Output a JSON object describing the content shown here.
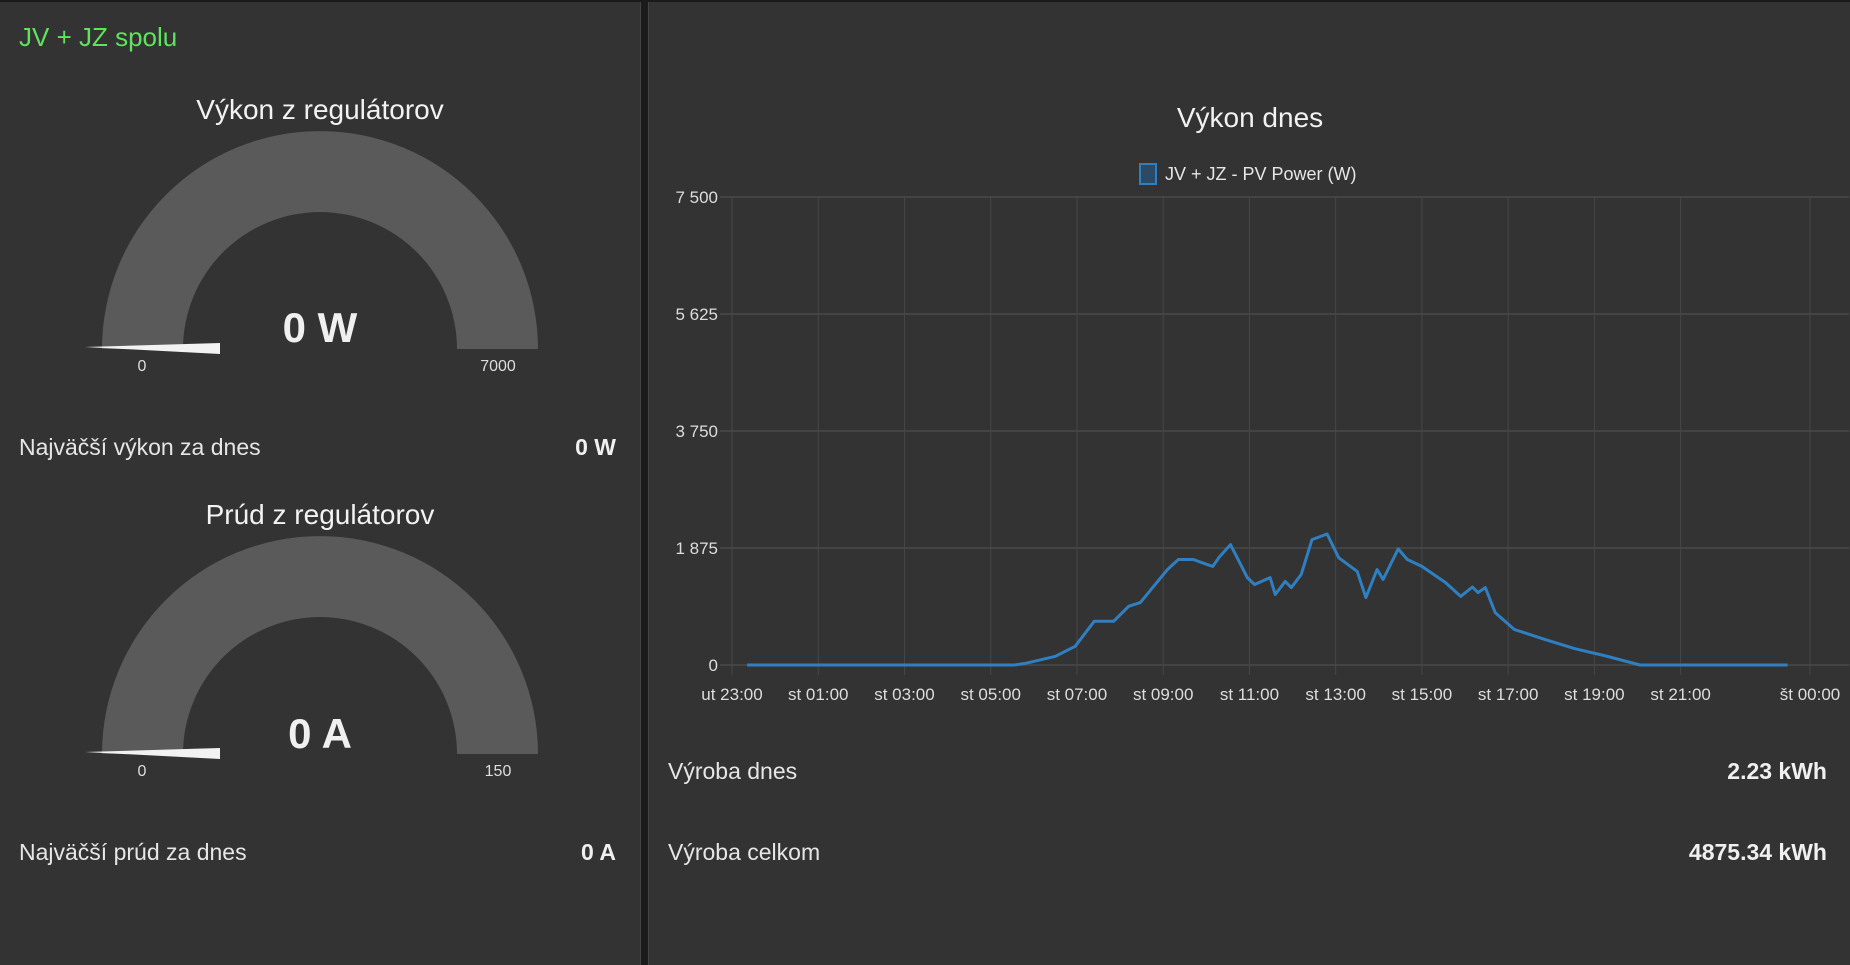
{
  "group_title": "JV + JZ spolu",
  "gauges": [
    {
      "title": "Výkon z regulátorov",
      "value": "0 W",
      "min": "0",
      "max": "7000",
      "fraction": 0
    },
    {
      "title": "Prúd z regulátorov",
      "value": "0 A",
      "min": "0",
      "max": "150",
      "fraction": 0
    }
  ],
  "left_rows": [
    {
      "label": "Najväčší výkon za dnes",
      "value": "0 W"
    },
    {
      "label": "Najväčší prúd za dnes",
      "value": "0 A"
    }
  ],
  "right_rows": [
    {
      "label": "Výroba dnes",
      "value": "2.23 kWh"
    },
    {
      "label": "Výroba celkom",
      "value": "4875.34 kWh"
    }
  ],
  "colors": {
    "accent": "#5ee35e",
    "series": "#2f7fc1",
    "gauge": "#5a5a5a",
    "panel": "#333333"
  },
  "chart_data": {
    "type": "line",
    "title": "Výkon dnes",
    "legend": [
      "JV + JZ - PV Power (W)"
    ],
    "legend_position": "top-center",
    "grid": true,
    "ylim": [
      0,
      7500
    ],
    "yticks": [
      0,
      1875,
      3750,
      5625,
      7500
    ],
    "ytick_labels": [
      "0",
      "1 875",
      "3 750",
      "5 625",
      "7 500"
    ],
    "x_unit": "hours since ut 23:00",
    "xlim": [
      0,
      25
    ],
    "xticks": [
      0,
      2,
      4,
      6,
      8,
      10,
      12,
      14,
      16,
      18,
      20,
      22,
      25
    ],
    "xtick_labels": [
      "ut 23:00",
      "st 01:00",
      "st 03:00",
      "st 05:00",
      "st 07:00",
      "st 09:00",
      "st 11:00",
      "st 13:00",
      "st 15:00",
      "st 17:00",
      "st 19:00",
      "st 21:00",
      "št 00:00"
    ],
    "series": [
      {
        "name": "JV + JZ - PV Power (W)",
        "x": [
          0.35,
          6.55,
          6.8,
          7.5,
          7.96,
          8.4,
          8.85,
          9.2,
          9.47,
          10.1,
          10.35,
          10.7,
          10.9,
          11.15,
          11.3,
          11.56,
          11.95,
          12.12,
          12.48,
          12.6,
          12.83,
          12.97,
          13.2,
          13.45,
          13.8,
          14.07,
          14.5,
          14.7,
          14.96,
          15.1,
          15.45,
          15.66,
          16.0,
          16.55,
          16.9,
          17.17,
          17.3,
          17.47,
          17.7,
          18.14,
          18.85,
          19.56,
          20.27,
          21.06,
          24.48
        ],
        "y": [
          0,
          0,
          25,
          140,
          300,
          700,
          700,
          940,
          1000,
          1530,
          1690,
          1690,
          1640,
          1580,
          1730,
          1930,
          1400,
          1290,
          1400,
          1130,
          1340,
          1240,
          1450,
          2010,
          2100,
          1720,
          1500,
          1080,
          1530,
          1370,
          1860,
          1690,
          1580,
          1320,
          1100,
          1250,
          1160,
          1240,
          840,
          570,
          410,
          260,
          145,
          0,
          0
        ]
      }
    ]
  }
}
